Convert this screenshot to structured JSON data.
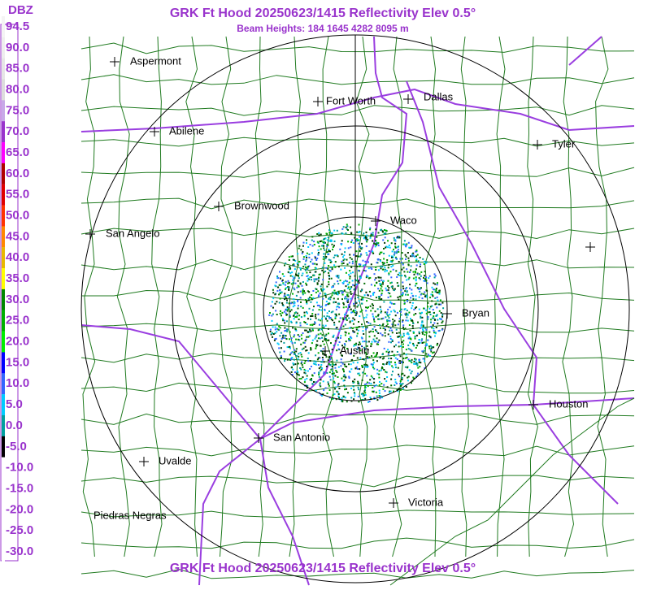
{
  "header": {
    "title": "GRK Ft Hood 20250623/1415 Reflectivity Elev 0.5°",
    "beam_heights": "Beam Heights: 184 1645 4282 8095 m"
  },
  "footer": {
    "title": "GRK Ft Hood 20250623/1415 Reflectivity Elev 0.5°"
  },
  "legend": {
    "unit": "DBZ",
    "entries": [
      {
        "label": "94.5",
        "color": "#f4f4f4"
      },
      {
        "label": "90.0",
        "color": "#eeeeee"
      },
      {
        "label": "85.0",
        "color": "#e6e6e6"
      },
      {
        "label": "80.0",
        "color": "#dddddd"
      },
      {
        "label": "75.0",
        "color": "#c8a8e8"
      },
      {
        "label": "70.0",
        "color": "#9933cc"
      },
      {
        "label": "65.0",
        "color": "#ff00ff"
      },
      {
        "label": "60.0",
        "color": "#b00000"
      },
      {
        "label": "55.0",
        "color": "#e00000"
      },
      {
        "label": "50.0",
        "color": "#ff3300"
      },
      {
        "label": "45.0",
        "color": "#ff8800"
      },
      {
        "label": "40.0",
        "color": "#e8b800"
      },
      {
        "label": "35.0",
        "color": "#ffff00"
      },
      {
        "label": "30.0",
        "color": "#008800"
      },
      {
        "label": "25.0",
        "color": "#00b000"
      },
      {
        "label": "20.0",
        "color": "#00ee00"
      },
      {
        "label": "15.0",
        "color": "#0000ff"
      },
      {
        "label": "10.0",
        "color": "#3366ff"
      },
      {
        "label": "5.0",
        "color": "#00ccff"
      },
      {
        "label": "0.0",
        "color": "#00a0a0"
      },
      {
        "label": "-5.0",
        "color": "#000000"
      },
      {
        "label": "-10.0",
        "color": "#ffffff"
      },
      {
        "label": "-15.0",
        "color": "#ffffff"
      },
      {
        "label": "-20.0",
        "color": "#ffffff"
      },
      {
        "label": "-25.0",
        "color": "#ffffff"
      },
      {
        "label": "-30.0",
        "color": "#ffffff"
      }
    ]
  },
  "cities": [
    "Aspermont",
    "Fort Worth",
    "Dallas",
    "Abilene",
    "Tyler",
    "Brownwood",
    "Waco",
    "San Angelo",
    "Bryan",
    "Austin",
    "Houston",
    "San Antonio",
    "Uvalde",
    "Victoria",
    "Piedras Negras"
  ]
}
